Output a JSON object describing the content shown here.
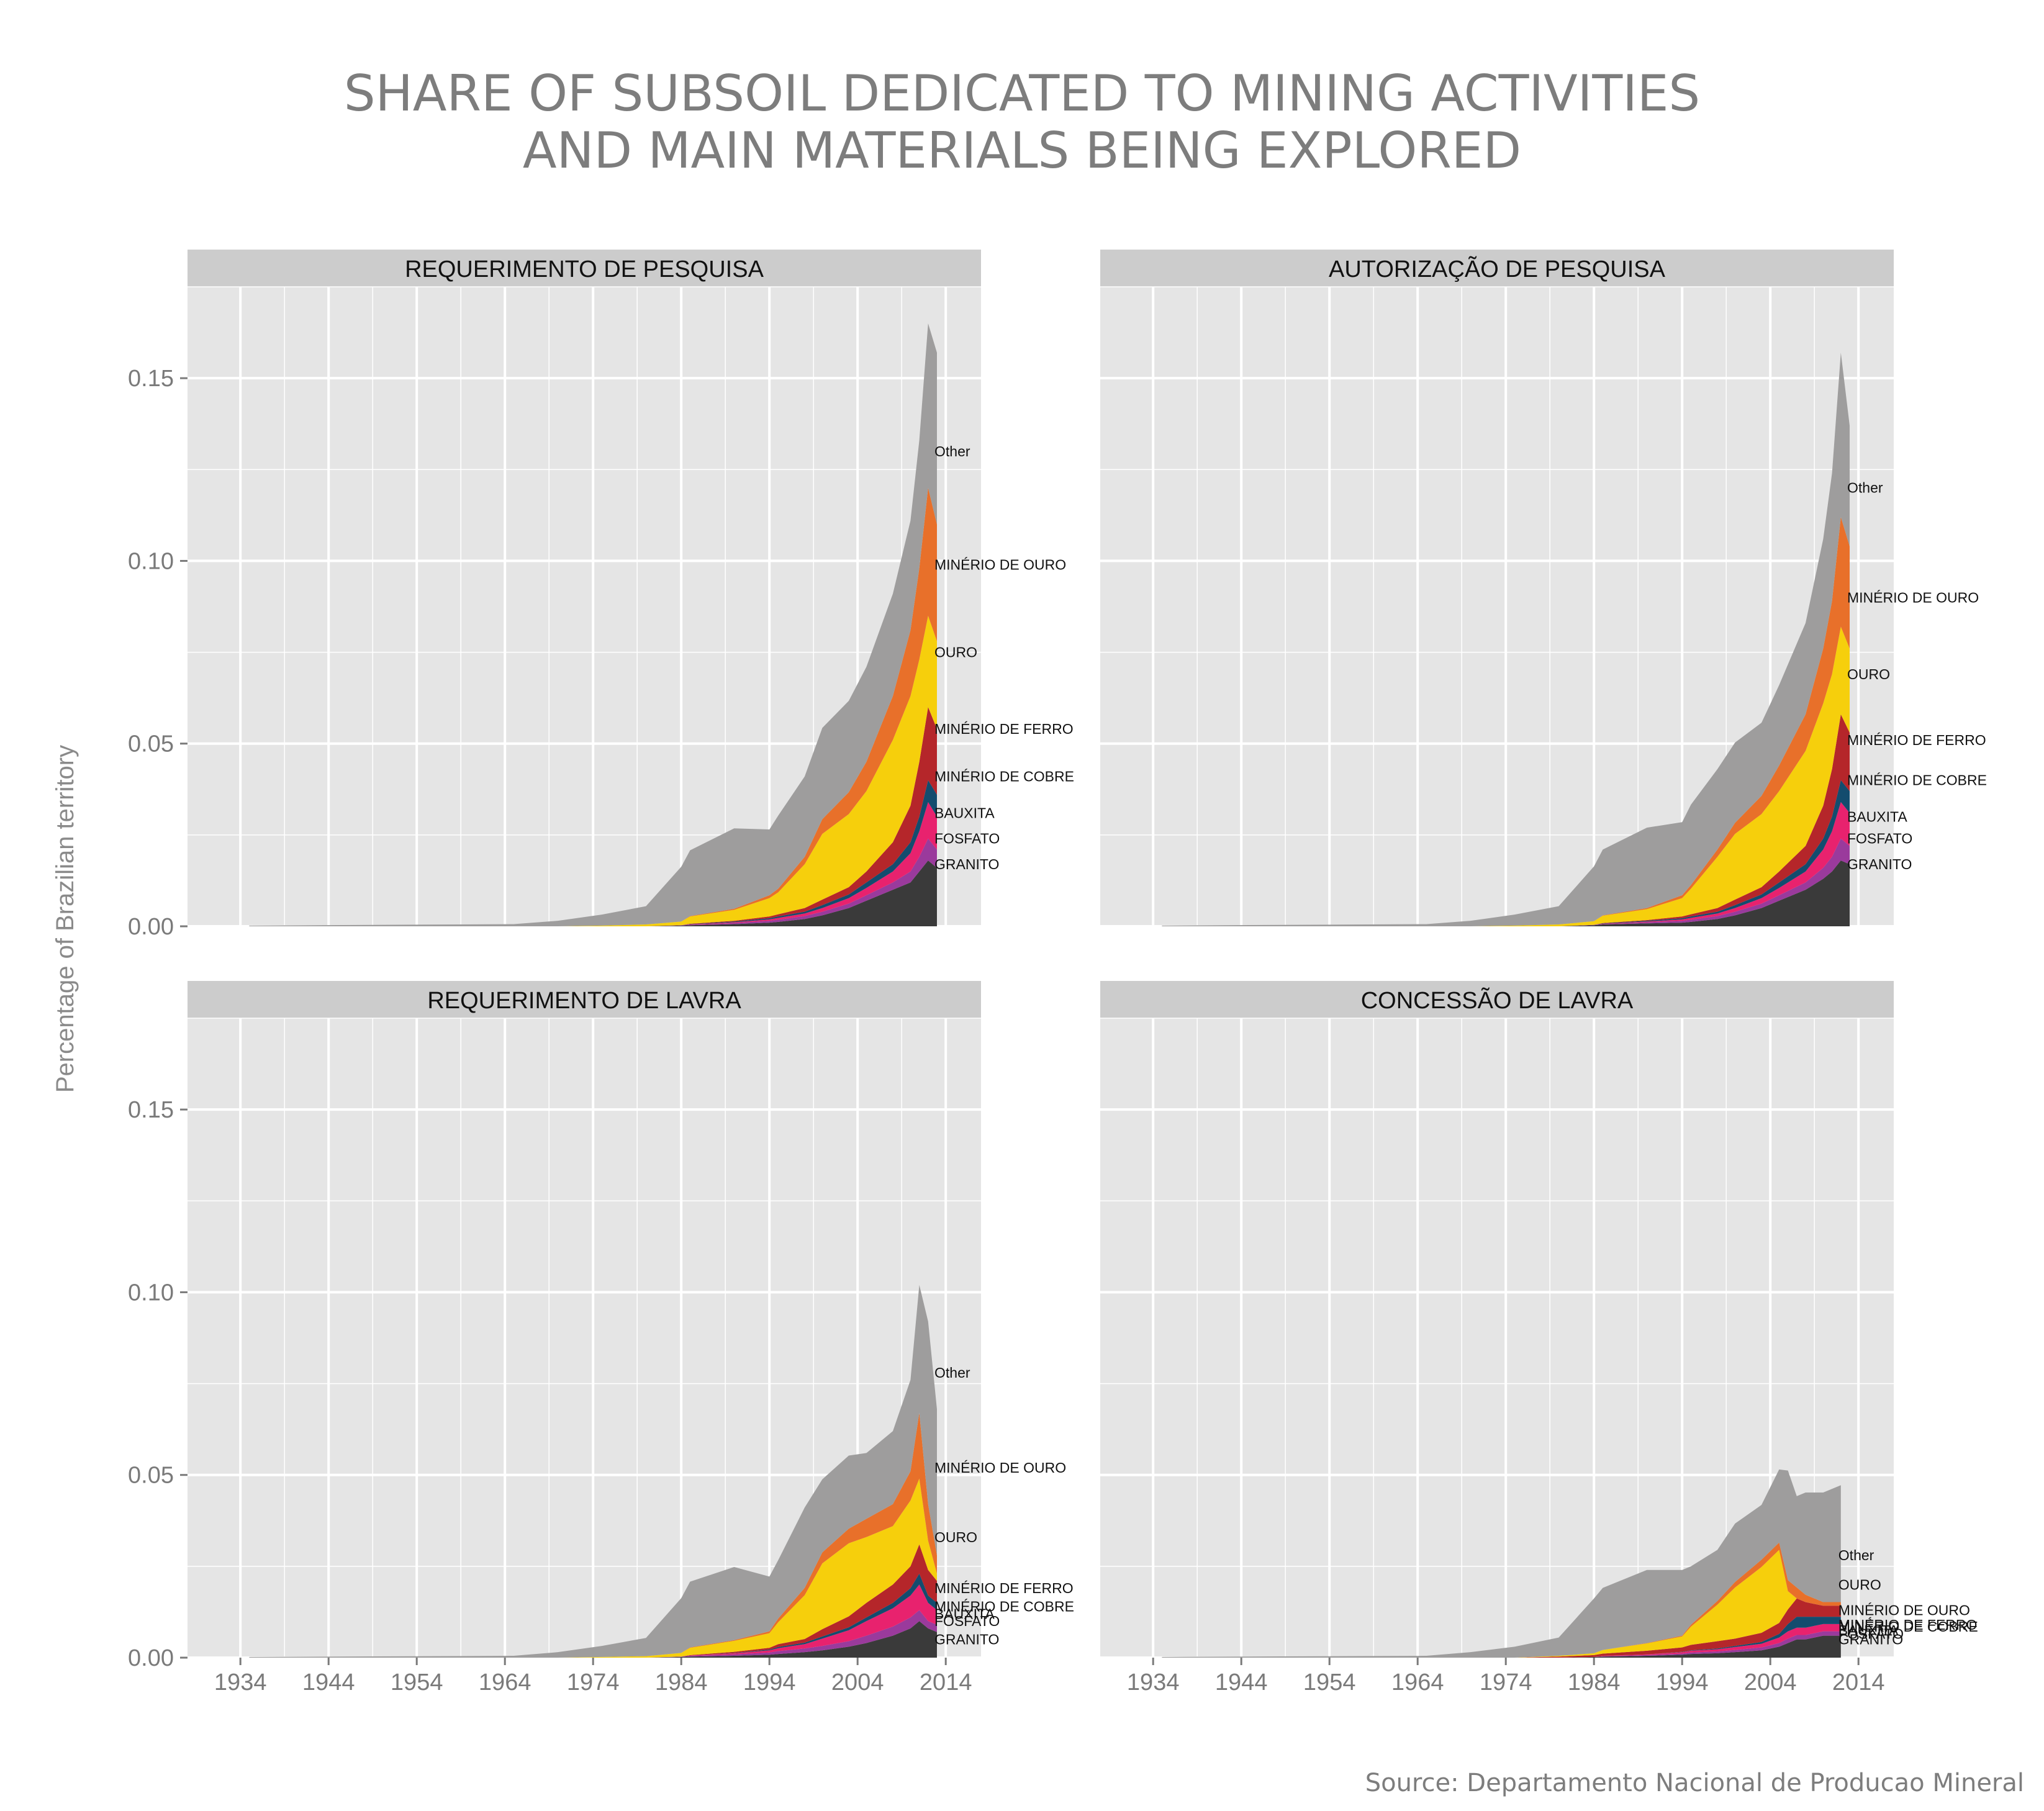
{
  "title": {
    "line1": "SHARE OF SUBSOIL DEDICATED TO MINING ACTIVITIES",
    "line2": "AND MAIN MATERIALS BEING EXPLORED"
  },
  "source": "Source: Departamento Nacional de Producao Mineral",
  "ylabel": "Percentage of Brazilian territory",
  "colors": {
    "Other": "#9e9d9d",
    "MINÉRIO DE OURO": "#e8702a",
    "OURO": "#f6cf0c",
    "MINÉRIO DE FERRO": "#b5262a",
    "MINÉRIO DE COBRE": "#134c6e",
    "BAUXITA": "#e8226e",
    "FOSFATO": "#9a3a9c",
    "GRANITO": "#3a3a3a",
    "panel_bg": "#e5e5e5",
    "strip_bg": "#cccccc",
    "grid": "#ffffff"
  },
  "chart_data": [
    {
      "type": "area",
      "panel": "REQUERIMENTO DE PESQUISA",
      "ylim": [
        0,
        0.175
      ],
      "xlim": [
        1928,
        2018
      ],
      "x_ticks": [
        1934,
        1944,
        1954,
        1964,
        1974,
        1984,
        1994,
        2004,
        2014
      ],
      "y_ticks": [
        "0.00",
        "0.05",
        "0.10",
        "0.15"
      ],
      "grid": true,
      "x": [
        1935,
        1965,
        1970,
        1975,
        1980,
        1984,
        1985,
        1990,
        1994,
        1995,
        1998,
        2000,
        2003,
        2005,
        2008,
        2010,
        2011,
        2012,
        2013
      ],
      "series": [
        {
          "name": "GRANITO",
          "label_y": 0.017,
          "values": [
            0,
            0,
            0,
            0,
            0,
            0.0002,
            0.0003,
            0.0006,
            0.001,
            0.0012,
            0.002,
            0.003,
            0.005,
            0.007,
            0.01,
            0.012,
            0.015,
            0.018,
            0.016
          ]
        },
        {
          "name": "FOSFATO",
          "label_y": 0.024,
          "values": [
            0,
            0,
            0,
            0,
            0,
            0.0001,
            0.0001,
            0.0003,
            0.0005,
            0.0006,
            0.0008,
            0.001,
            0.0012,
            0.0015,
            0.002,
            0.003,
            0.004,
            0.006,
            0.005
          ]
        },
        {
          "name": "BAUXITA",
          "label_y": 0.031,
          "values": [
            0,
            0,
            0,
            0,
            0,
            0,
            0.0001,
            0.0002,
            0.0004,
            0.0005,
            0.0007,
            0.001,
            0.0015,
            0.002,
            0.003,
            0.005,
            0.007,
            0.01,
            0.009
          ]
        },
        {
          "name": "MINÉRIO DE COBRE",
          "label_y": 0.041,
          "values": [
            0,
            0,
            0,
            0,
            0,
            0,
            0.0001,
            0.0002,
            0.0003,
            0.0004,
            0.0005,
            0.0008,
            0.001,
            0.0015,
            0.002,
            0.003,
            0.004,
            0.006,
            0.006
          ]
        },
        {
          "name": "MINÉRIO DE FERRO",
          "label_y": 0.054,
          "values": [
            0,
            0,
            0,
            0,
            0,
            0,
            0.0001,
            0.0002,
            0.0005,
            0.0006,
            0.001,
            0.0015,
            0.002,
            0.003,
            0.006,
            0.01,
            0.015,
            0.02,
            0.018
          ]
        },
        {
          "name": "OURO",
          "label_y": 0.075,
          "values": [
            0,
            0,
            0,
            0.0002,
            0.0005,
            0.001,
            0.002,
            0.003,
            0.005,
            0.006,
            0.012,
            0.018,
            0.02,
            0.022,
            0.028,
            0.03,
            0.028,
            0.025,
            0.024
          ]
        },
        {
          "name": "MINÉRIO DE OURO",
          "label_y": 0.099,
          "values": [
            0,
            0,
            0,
            0,
            0,
            0,
            0.0001,
            0.0003,
            0.0008,
            0.001,
            0.002,
            0.004,
            0.006,
            0.008,
            0.012,
            0.018,
            0.025,
            0.035,
            0.032
          ]
        },
        {
          "name": "Other",
          "label_y": 0.13,
          "values": [
            0.0002,
            0.0006,
            0.0015,
            0.003,
            0.005,
            0.015,
            0.018,
            0.022,
            0.018,
            0.02,
            0.022,
            0.025,
            0.025,
            0.026,
            0.028,
            0.03,
            0.035,
            0.045,
            0.047
          ]
        }
      ]
    },
    {
      "type": "area",
      "panel": "AUTORIZAÇÃO DE PESQUISA",
      "ylim": [
        0,
        0.175
      ],
      "xlim": [
        1928,
        2018
      ],
      "x_ticks": [
        1934,
        1944,
        1954,
        1964,
        1974,
        1984,
        1994,
        2004,
        2014
      ],
      "y_ticks": [
        "0.00",
        "0.05",
        "0.10",
        "0.15"
      ],
      "grid": true,
      "x": [
        1935,
        1965,
        1970,
        1975,
        1980,
        1984,
        1985,
        1990,
        1994,
        1995,
        1998,
        2000,
        2003,
        2005,
        2008,
        2010,
        2011,
        2012,
        2013
      ],
      "series": [
        {
          "name": "GRANITO",
          "label_y": 0.017,
          "values": [
            0,
            0,
            0,
            0,
            0,
            0.0003,
            0.0005,
            0.0008,
            0.001,
            0.0012,
            0.002,
            0.003,
            0.005,
            0.007,
            0.01,
            0.013,
            0.015,
            0.018,
            0.017
          ]
        },
        {
          "name": "FOSFATO",
          "label_y": 0.024,
          "values": [
            0,
            0,
            0,
            0,
            0,
            0.0001,
            0.0001,
            0.0003,
            0.0005,
            0.0006,
            0.0008,
            0.001,
            0.0012,
            0.0015,
            0.002,
            0.003,
            0.004,
            0.006,
            0.005
          ]
        },
        {
          "name": "BAUXITA",
          "label_y": 0.03,
          "values": [
            0,
            0,
            0,
            0,
            0,
            0,
            0.0001,
            0.0002,
            0.0004,
            0.0005,
            0.0007,
            0.001,
            0.0015,
            0.002,
            0.003,
            0.005,
            0.007,
            0.01,
            0.009
          ]
        },
        {
          "name": "MINÉRIO DE COBRE",
          "label_y": 0.04,
          "values": [
            0,
            0,
            0,
            0,
            0,
            0,
            0.0001,
            0.0002,
            0.0003,
            0.0004,
            0.0005,
            0.0008,
            0.001,
            0.0015,
            0.002,
            0.003,
            0.004,
            0.006,
            0.006
          ]
        },
        {
          "name": "MINÉRIO DE FERRO",
          "label_y": 0.051,
          "values": [
            0,
            0,
            0,
            0,
            0,
            0,
            0.0001,
            0.0002,
            0.0005,
            0.0006,
            0.001,
            0.0015,
            0.002,
            0.003,
            0.005,
            0.009,
            0.013,
            0.018,
            0.016
          ]
        },
        {
          "name": "OURO",
          "label_y": 0.069,
          "values": [
            0,
            0,
            0,
            0.0002,
            0.0005,
            0.001,
            0.002,
            0.003,
            0.005,
            0.007,
            0.014,
            0.018,
            0.02,
            0.022,
            0.026,
            0.028,
            0.026,
            0.024,
            0.023
          ]
        },
        {
          "name": "MINÉRIO DE OURO",
          "label_y": 0.09,
          "values": [
            0,
            0,
            0,
            0,
            0,
            0,
            0.0001,
            0.0003,
            0.0008,
            0.001,
            0.002,
            0.003,
            0.005,
            0.007,
            0.01,
            0.015,
            0.02,
            0.03,
            0.028
          ]
        },
        {
          "name": "Other",
          "label_y": 0.12,
          "values": [
            0.0002,
            0.0006,
            0.0015,
            0.003,
            0.005,
            0.015,
            0.018,
            0.022,
            0.02,
            0.022,
            0.022,
            0.022,
            0.02,
            0.022,
            0.025,
            0.03,
            0.035,
            0.045,
            0.033
          ]
        }
      ]
    },
    {
      "type": "area",
      "panel": "REQUERIMENTO DE LAVRA",
      "ylim": [
        0,
        0.175
      ],
      "xlim": [
        1928,
        2018
      ],
      "x_ticks": [
        1934,
        1944,
        1954,
        1964,
        1974,
        1984,
        1994,
        2004,
        2014
      ],
      "y_ticks": [
        "0.00",
        "0.05",
        "0.10",
        "0.15"
      ],
      "grid": true,
      "x": [
        1935,
        1965,
        1970,
        1975,
        1980,
        1984,
        1985,
        1990,
        1994,
        1995,
        1998,
        2000,
        2003,
        2005,
        2008,
        2010,
        2011,
        2012,
        2013
      ],
      "series": [
        {
          "name": "GRANITO",
          "label_y": 0.005,
          "values": [
            0,
            0,
            0,
            0,
            0,
            0.0002,
            0.0003,
            0.0005,
            0.0008,
            0.001,
            0.0015,
            0.002,
            0.003,
            0.004,
            0.006,
            0.008,
            0.01,
            0.008,
            0.007
          ]
        },
        {
          "name": "FOSFATO",
          "label_y": 0.01,
          "values": [
            0,
            0,
            0,
            0,
            0,
            0.0001,
            0.0002,
            0.0004,
            0.0006,
            0.0008,
            0.001,
            0.0012,
            0.0015,
            0.002,
            0.0025,
            0.003,
            0.003,
            0.002,
            0.002
          ]
        },
        {
          "name": "BAUXITA",
          "label_y": 0.012,
          "values": [
            0,
            0,
            0,
            0,
            0,
            0,
            0.0001,
            0.0003,
            0.0006,
            0.0008,
            0.0012,
            0.002,
            0.003,
            0.004,
            0.005,
            0.006,
            0.007,
            0.005,
            0.004
          ]
        },
        {
          "name": "MINÉRIO DE COBRE",
          "label_y": 0.014,
          "values": [
            0,
            0,
            0,
            0,
            0,
            0,
            0,
            0.0001,
            0.0002,
            0.0003,
            0.0004,
            0.0006,
            0.0008,
            0.001,
            0.0015,
            0.002,
            0.003,
            0.002,
            0.002
          ]
        },
        {
          "name": "MINÉRIO DE FERRO",
          "label_y": 0.019,
          "values": [
            0,
            0,
            0,
            0,
            0,
            0,
            0.0001,
            0.0003,
            0.0005,
            0.0008,
            0.001,
            0.002,
            0.003,
            0.004,
            0.005,
            0.006,
            0.008,
            0.007,
            0.006
          ]
        },
        {
          "name": "OURO",
          "label_y": 0.033,
          "values": [
            0,
            0,
            0,
            0.0002,
            0.0004,
            0.001,
            0.002,
            0.003,
            0.004,
            0.006,
            0.012,
            0.018,
            0.02,
            0.018,
            0.016,
            0.018,
            0.018,
            0.008,
            0.002
          ]
        },
        {
          "name": "MINÉRIO DE OURO",
          "label_y": 0.052,
          "values": [
            0,
            0,
            0,
            0,
            0,
            0,
            0.0001,
            0.0002,
            0.0005,
            0.001,
            0.002,
            0.003,
            0.004,
            0.005,
            0.006,
            0.008,
            0.018,
            0.01,
            0.005
          ]
        },
        {
          "name": "Other",
          "label_y": 0.078,
          "values": [
            0.0002,
            0.0005,
            0.0015,
            0.003,
            0.005,
            0.015,
            0.018,
            0.02,
            0.015,
            0.016,
            0.022,
            0.02,
            0.02,
            0.018,
            0.02,
            0.025,
            0.035,
            0.05,
            0.04
          ]
        }
      ]
    },
    {
      "type": "area",
      "panel": "CONCESSÃO DE LAVRA",
      "ylim": [
        0,
        0.175
      ],
      "xlim": [
        1928,
        2018
      ],
      "x_ticks": [
        1934,
        1944,
        1954,
        1964,
        1974,
        1984,
        1994,
        2004,
        2014
      ],
      "y_ticks": [
        "0.00",
        "0.05",
        "0.10",
        "0.15"
      ],
      "grid": true,
      "x": [
        1935,
        1965,
        1970,
        1975,
        1980,
        1984,
        1985,
        1990,
        1994,
        1995,
        1998,
        2000,
        2003,
        2005,
        2006,
        2007,
        2008,
        2010,
        2012
      ],
      "series": [
        {
          "name": "GRANITO",
          "label_y": 0.005,
          "values": [
            0,
            0,
            0,
            0,
            0,
            0.0002,
            0.0003,
            0.0005,
            0.0008,
            0.001,
            0.0012,
            0.0015,
            0.002,
            0.003,
            0.004,
            0.005,
            0.005,
            0.006,
            0.006
          ]
        },
        {
          "name": "FOSFATO",
          "label_y": 0.0065,
          "values": [
            0,
            0,
            0,
            0,
            0,
            0,
            0.0001,
            0.0002,
            0.0003,
            0.0004,
            0.0005,
            0.0006,
            0.0008,
            0.001,
            0.0012,
            0.0012,
            0.0012,
            0.0012,
            0.0012
          ]
        },
        {
          "name": "BAUXITA",
          "label_y": 0.0075,
          "values": [
            0,
            0,
            0,
            0,
            0,
            0,
            0.0001,
            0.0002,
            0.0004,
            0.0005,
            0.0006,
            0.0008,
            0.001,
            0.0015,
            0.002,
            0.002,
            0.002,
            0.002,
            0.002
          ]
        },
        {
          "name": "MINÉRIO DE COBRE",
          "label_y": 0.0085,
          "values": [
            0,
            0,
            0,
            0,
            0,
            0,
            0,
            0,
            0.0001,
            0.0001,
            0.0002,
            0.0003,
            0.0005,
            0.001,
            0.002,
            0.003,
            0.003,
            0.002,
            0.002
          ]
        },
        {
          "name": "MINÉRIO DE FERRO",
          "label_y": 0.009,
          "values": [
            0,
            0,
            0,
            0,
            0.0003,
            0.0005,
            0.0006,
            0.001,
            0.0012,
            0.0015,
            0.002,
            0.002,
            0.0025,
            0.003,
            0.004,
            0.005,
            0.004,
            0.003,
            0.003
          ]
        },
        {
          "name": "OURO",
          "label_y": 0.02,
          "values": [
            0,
            0,
            0,
            0,
            0.0002,
            0.0005,
            0.001,
            0.002,
            0.003,
            0.005,
            0.01,
            0.014,
            0.018,
            0.02,
            0.005,
            0,
            0,
            0,
            0
          ]
        },
        {
          "name": "MINÉRIO DE OURO",
          "label_y": 0.013,
          "values": [
            0,
            0,
            0,
            0,
            0,
            0,
            0,
            0.0001,
            0.0002,
            0.0005,
            0.001,
            0.0015,
            0.002,
            0.002,
            0.003,
            0.003,
            0.002,
            0.001,
            0.001
          ]
        },
        {
          "name": "Other",
          "label_y": 0.028,
          "values": [
            0.0002,
            0.0005,
            0.0015,
            0.003,
            0.005,
            0.015,
            0.017,
            0.02,
            0.018,
            0.016,
            0.014,
            0.016,
            0.015,
            0.02,
            0.03,
            0.025,
            0.028,
            0.03,
            0.032
          ]
        }
      ]
    }
  ]
}
